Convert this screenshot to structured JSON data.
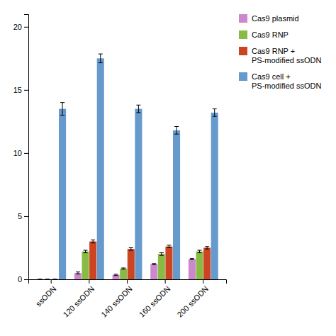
{
  "chart_data": {
    "type": "bar",
    "categories": [
      "ssODN",
      "120 ssODN",
      "140 ssODN",
      "160 ssODN",
      "200 ssODN"
    ],
    "series": [
      {
        "name": "Cas9 plasmid",
        "color": "#cc88cc",
        "values": [
          0.0,
          0.5,
          0.35,
          1.2,
          1.6
        ],
        "errors": [
          0.0,
          0.08,
          0.05,
          0.05,
          0.05
        ]
      },
      {
        "name": "Cas9 RNP",
        "color": "#88bb44",
        "values": [
          0.0,
          2.2,
          0.85,
          2.0,
          2.2
        ],
        "errors": [
          0.0,
          0.1,
          0.05,
          0.1,
          0.1
        ]
      },
      {
        "name": "Cas9 RNP +\nPS-modified ssODN",
        "color": "#cc4422",
        "values": [
          0.0,
          3.0,
          2.4,
          2.6,
          2.5
        ],
        "errors": [
          0.0,
          0.12,
          0.1,
          0.1,
          0.1
        ]
      },
      {
        "name": "Cas9 cell +\nPS-modified ssODN",
        "color": "#6699cc",
        "values": [
          13.5,
          17.5,
          13.5,
          11.8,
          13.2
        ],
        "errors": [
          0.5,
          0.35,
          0.3,
          0.3,
          0.3
        ]
      }
    ],
    "ylim": [
      0,
      21
    ],
    "yticks": [
      0,
      5,
      10,
      15,
      20
    ],
    "legend": "right"
  }
}
